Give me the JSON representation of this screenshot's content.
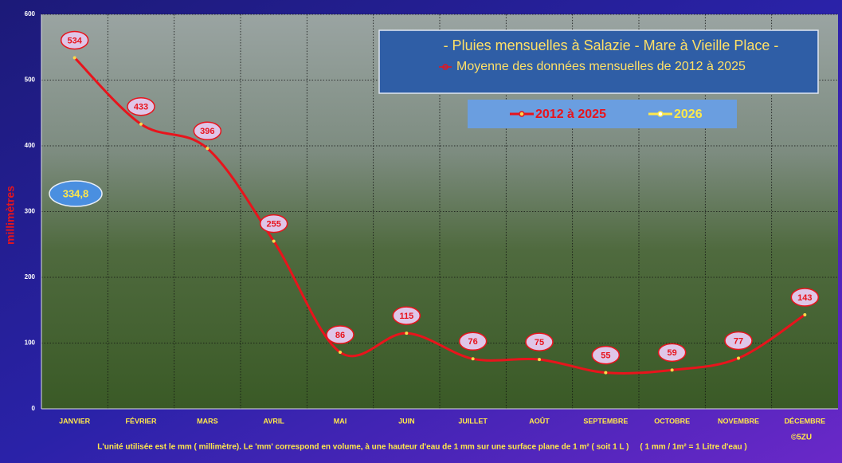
{
  "chart_data": {
    "type": "line",
    "title": "- Pluies mensuelles à Salazie - Mare à Vieille Place -",
    "subtitle": "Moyenne des données mensuelles de 2012 à 2025",
    "y_label": "millimètres",
    "categories": [
      "JANVIER",
      "FÉVRIER",
      "MARS",
      "AVRIL",
      "MAI",
      "JUIN",
      "JUILLET",
      "AOÛT",
      "SEPTEMBRE",
      "OCTOBRE",
      "NOVEMBRE",
      "DÉCEMBRE"
    ],
    "series": [
      {
        "name": "2012 à 2025",
        "color": "#e8141c",
        "values": [
          534,
          433,
          396,
          255,
          86,
          115,
          76,
          75,
          55,
          59,
          77,
          143
        ]
      },
      {
        "name": "2026",
        "color": "#ffe84a",
        "values": [
          null,
          null,
          null,
          null,
          null,
          null,
          null,
          null,
          null,
          null,
          null,
          null
        ]
      }
    ],
    "ylim": [
      0,
      600
    ],
    "yticks": [
      0,
      100,
      200,
      300,
      400,
      500,
      600
    ],
    "grid": true,
    "smooth": true,
    "annotation": "334,8",
    "footnote": "L'unité utilisée est le mm ( millimètre). Le 'mm' correspond en volume, à une hauteur d'eau de 1 mm sur une surface plane de 1 m² ( soit 1 L )     ( 1 mm / 1m² = 1 Litre d'eau )",
    "credit": "©5ZU"
  }
}
